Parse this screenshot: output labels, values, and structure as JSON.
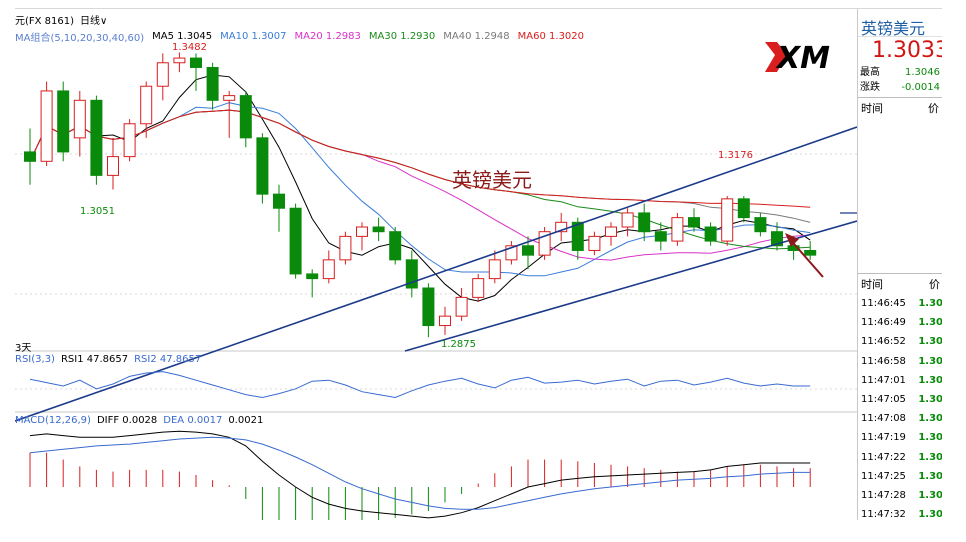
{
  "topbar": {
    "symbol": "元(FX 8161)",
    "period": "日线",
    "chevron": "∨"
  },
  "ma_legend": [
    {
      "label": "MA组合(5,10,20,30,40,60)",
      "color": "#5a7fd0"
    },
    {
      "label": "MA5 1.3045",
      "color": "#000000"
    },
    {
      "label": "MA10 1.3007",
      "color": "#3a7dd8"
    },
    {
      "label": "MA20 1.2983",
      "color": "#d832c8"
    },
    {
      "label": "MA30 1.2930",
      "color": "#1a8a1a"
    },
    {
      "label": "MA40 1.2948",
      "color": "#7a7a7a"
    },
    {
      "label": "MA60 1.3020",
      "color": "#d81e1e"
    }
  ],
  "chart_labels": {
    "high": "1.3482",
    "low1": "1.3051",
    "low2": "1.2875",
    "high2": "1.3176",
    "overlay_title": "英镑美元",
    "day_mark": "3天"
  },
  "rsi_legend": [
    {
      "label": "RSI(3,3)",
      "color": "#3a6ad0"
    },
    {
      "label": "RSI1 47.8657",
      "color": "#000000"
    },
    {
      "label": "RSI2 47.8657",
      "color": "#3a6ad0"
    }
  ],
  "macd_legend": [
    {
      "label": "MACD(12,26,9)",
      "color": "#3a6ad0"
    },
    {
      "label": "DIFF 0.0028",
      "color": "#000000"
    },
    {
      "label": "DEA 0.0017",
      "color": "#3a6ad0"
    },
    {
      "label": "0.0021",
      "color": "#000000"
    }
  ],
  "logo_text": "XM",
  "right_panel": {
    "title": "英镑美元",
    "price": "1.3033",
    "rows": [
      {
        "label": "最高",
        "value": "1.3046"
      },
      {
        "label": "涨跌",
        "value": "-0.0014"
      }
    ],
    "head": {
      "time": "时间",
      "price": "价"
    },
    "ticks_head": {
      "time": "时间",
      "price": "价"
    },
    "ticks": [
      {
        "time": "11:46:45",
        "price": "1.30"
      },
      {
        "time": "11:46:49",
        "price": "1.30"
      },
      {
        "time": "11:46:52",
        "price": "1.30"
      },
      {
        "time": "11:46:58",
        "price": "1.30"
      },
      {
        "time": "11:47:01",
        "price": "1.30"
      },
      {
        "time": "11:47:05",
        "price": "1.30"
      },
      {
        "time": "11:47:08",
        "price": "1.30"
      },
      {
        "time": "11:47:19",
        "price": "1.30"
      },
      {
        "time": "11:47:22",
        "price": "1.30"
      },
      {
        "time": "11:47:25",
        "price": "1.30"
      },
      {
        "time": "11:47:28",
        "price": "1.30"
      },
      {
        "time": "11:47:32",
        "price": "1.30"
      }
    ]
  },
  "colors": {
    "up": "#d81e1e",
    "down": "#0a8a0a",
    "trend": "#1c3a8a"
  },
  "chart_data": {
    "type": "candlestick",
    "candles": [
      [
        1.327,
        1.332,
        1.32,
        1.325
      ],
      [
        1.325,
        1.342,
        1.324,
        1.34
      ],
      [
        1.34,
        1.342,
        1.325,
        1.327
      ],
      [
        1.33,
        1.34,
        1.326,
        1.338
      ],
      [
        1.338,
        1.339,
        1.32,
        1.322
      ],
      [
        1.322,
        1.33,
        1.319,
        1.326
      ],
      [
        1.326,
        1.334,
        1.325,
        1.333
      ],
      [
        1.333,
        1.342,
        1.33,
        1.341
      ],
      [
        1.341,
        1.348,
        1.338,
        1.346
      ],
      [
        1.346,
        1.3482,
        1.344,
        1.347
      ],
      [
        1.347,
        1.348,
        1.34,
        1.345
      ],
      [
        1.345,
        1.346,
        1.336,
        1.338
      ],
      [
        1.338,
        1.34,
        1.33,
        1.339
      ],
      [
        1.339,
        1.34,
        1.328,
        1.33
      ],
      [
        1.33,
        1.331,
        1.316,
        1.318
      ],
      [
        1.318,
        1.32,
        1.31,
        1.315
      ],
      [
        1.315,
        1.316,
        1.3,
        1.301
      ],
      [
        1.301,
        1.302,
        1.296,
        1.3
      ],
      [
        1.3,
        1.306,
        1.299,
        1.304
      ],
      [
        1.304,
        1.31,
        1.303,
        1.309
      ],
      [
        1.309,
        1.312,
        1.306,
        1.311
      ],
      [
        1.311,
        1.313,
        1.308,
        1.31
      ],
      [
        1.31,
        1.311,
        1.303,
        1.304
      ],
      [
        1.304,
        1.306,
        1.296,
        1.298
      ],
      [
        1.298,
        1.299,
        1.2875,
        1.29
      ],
      [
        1.29,
        1.294,
        1.288,
        1.292
      ],
      [
        1.292,
        1.298,
        1.291,
        1.296
      ],
      [
        1.296,
        1.301,
        1.295,
        1.3
      ],
      [
        1.3,
        1.306,
        1.299,
        1.304
      ],
      [
        1.304,
        1.308,
        1.303,
        1.307
      ],
      [
        1.307,
        1.309,
        1.302,
        1.305
      ],
      [
        1.305,
        1.311,
        1.304,
        1.31
      ],
      [
        1.31,
        1.314,
        1.308,
        1.312
      ],
      [
        1.312,
        1.313,
        1.304,
        1.306
      ],
      [
        1.306,
        1.31,
        1.305,
        1.309
      ],
      [
        1.309,
        1.312,
        1.307,
        1.311
      ],
      [
        1.311,
        1.315,
        1.309,
        1.314
      ],
      [
        1.314,
        1.316,
        1.308,
        1.31
      ],
      [
        1.31,
        1.312,
        1.306,
        1.308
      ],
      [
        1.308,
        1.314,
        1.307,
        1.313
      ],
      [
        1.313,
        1.315,
        1.31,
        1.311
      ],
      [
        1.311,
        1.312,
        1.307,
        1.308
      ],
      [
        1.308,
        1.3176,
        1.307,
        1.317
      ],
      [
        1.317,
        1.3176,
        1.312,
        1.313
      ],
      [
        1.313,
        1.314,
        1.309,
        1.31
      ],
      [
        1.31,
        1.312,
        1.306,
        1.307
      ],
      [
        1.307,
        1.309,
        1.304,
        1.306
      ],
      [
        1.306,
        1.308,
        1.304,
        1.305
      ]
    ],
    "ylim": [
      1.285,
      1.35
    ],
    "rsi": [
      62,
      55,
      48,
      60,
      42,
      52,
      68,
      75,
      78,
      70,
      60,
      50,
      40,
      30,
      24,
      32,
      42,
      58,
      60,
      50,
      36,
      30,
      24,
      38,
      50,
      58,
      64,
      52,
      44,
      60,
      66,
      54,
      56,
      60,
      52,
      58,
      62,
      48,
      58,
      60,
      50,
      56,
      64,
      54,
      48,
      52,
      48,
      48
    ],
    "diff": [
      0.006,
      0.0062,
      0.006,
      0.0058,
      0.0058,
      0.0058,
      0.006,
      0.0062,
      0.0064,
      0.0065,
      0.0064,
      0.0062,
      0.0058,
      0.0048,
      0.003,
      0.0014,
      0.0,
      -0.0012,
      -0.002,
      -0.0025,
      -0.0028,
      -0.003,
      -0.0032,
      -0.0034,
      -0.0036,
      -0.0034,
      -0.003,
      -0.0024,
      -0.0016,
      -0.0008,
      0.0,
      0.0004,
      0.0008,
      0.001,
      0.0012,
      0.0013,
      0.0014,
      0.0015,
      0.0016,
      0.0017,
      0.0018,
      0.002,
      0.0024,
      0.0026,
      0.0028,
      0.0028,
      0.0028,
      0.0028
    ],
    "dea": [
      0.004,
      0.0042,
      0.0044,
      0.0046,
      0.0048,
      0.0049,
      0.005,
      0.0052,
      0.0054,
      0.0056,
      0.0057,
      0.0058,
      0.0057,
      0.0055,
      0.005,
      0.0043,
      0.0035,
      0.0026,
      0.0016,
      0.0006,
      -0.0002,
      -0.0008,
      -0.0014,
      -0.0018,
      -0.0022,
      -0.0025,
      -0.0026,
      -0.0026,
      -0.0024,
      -0.002,
      -0.0016,
      -0.0012,
      -0.0008,
      -0.0005,
      -0.0002,
      0.0,
      0.0002,
      0.0004,
      0.0006,
      0.0008,
      0.0009,
      0.001,
      0.0012,
      0.0013,
      0.0015,
      0.0016,
      0.0017,
      0.0017
    ]
  }
}
